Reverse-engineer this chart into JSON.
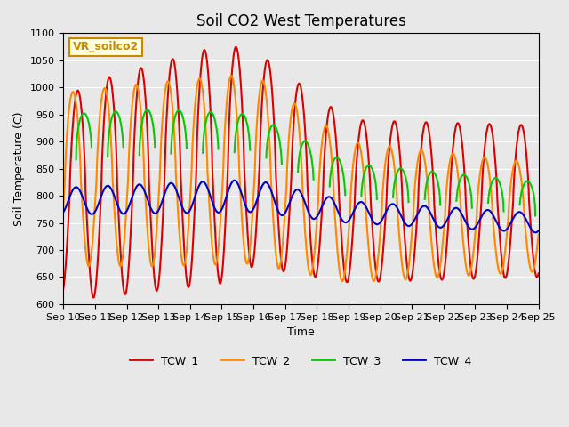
{
  "title": "Soil CO2 West Temperatures",
  "xlabel": "Time",
  "ylabel": "Soil Temperature (C)",
  "ylim": [
    600,
    1100
  ],
  "xlim": [
    0,
    15
  ],
  "xtick_labels": [
    "Sep 10",
    "Sep 11",
    "Sep 12",
    "Sep 13",
    "Sep 14",
    "Sep 15",
    "Sep 16",
    "Sep 17",
    "Sep 18",
    "Sep 19",
    "Sep 20",
    "Sep 21",
    "Sep 22",
    "Sep 23",
    "Sep 24",
    "Sep 25"
  ],
  "series_names": [
    "TCW_1",
    "TCW_2",
    "TCW_3",
    "TCW_4"
  ],
  "colors": [
    "#dd0000",
    "#ff8800",
    "#00cc00",
    "#0000cc"
  ],
  "annotation_text": "VR_soilco2",
  "annotation_color": "#cc8800",
  "background_color": "#e8e8e8",
  "fig_bg": "#e8e8e8",
  "linewidth": 1.5,
  "title_fontsize": 12,
  "label_fontsize": 9,
  "tick_fontsize": 8,
  "yticks": [
    600,
    650,
    700,
    750,
    800,
    850,
    900,
    950,
    1000,
    1050,
    1100
  ]
}
